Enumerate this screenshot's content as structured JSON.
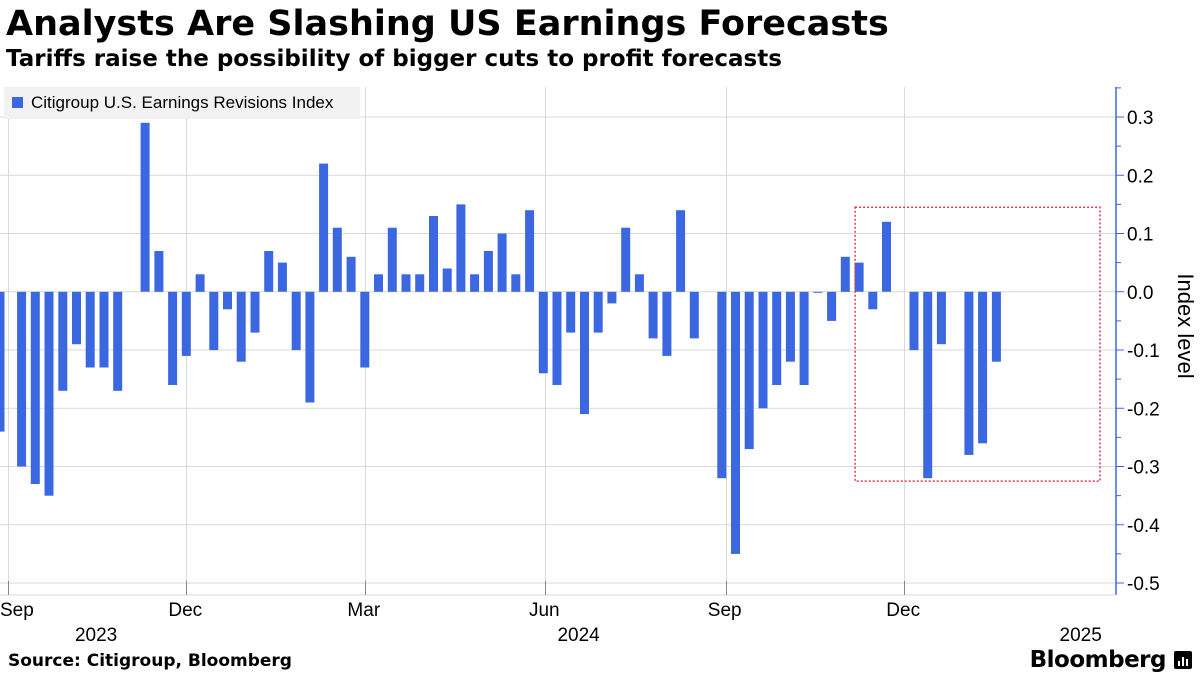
{
  "header": {
    "title": "Analysts Are Slashing US Earnings Forecasts",
    "subtitle": "Tariffs raise the possibility of bigger cuts to profit forecasts"
  },
  "legend": {
    "label": "Citigroup U.S. Earnings Revisions Index"
  },
  "footer": {
    "source": "Source: Citigroup, Bloomberg",
    "brand": "Bloomberg"
  },
  "colors": {
    "bar": "#3b68e0",
    "grid": "#d9d9d9",
    "highlight": "#e8344a",
    "axis": "#3b68e0"
  },
  "chart_data": {
    "type": "bar",
    "title": "Analysts Are Slashing US Earnings Forecasts",
    "ylabel": "Index level",
    "ylim": [
      -0.5,
      0.35
    ],
    "yticks": [
      0.3,
      0.2,
      0.1,
      0.0,
      -0.1,
      -0.2,
      -0.3,
      -0.4,
      -0.5
    ],
    "ytick_labels": [
      "0.3",
      "0.2",
      "0.1",
      "0.0",
      "-0.1",
      "-0.2",
      "-0.3",
      "-0.4",
      "-0.5"
    ],
    "grid": true,
    "legend_position": "top-left",
    "x_axis": {
      "start": "2023-08-28",
      "end": "2025-03-19",
      "months": [
        {
          "label": "Sep",
          "date": "2023-09-01"
        },
        {
          "label": "Dec",
          "date": "2023-12-01"
        },
        {
          "label": "Mar",
          "date": "2024-03-01"
        },
        {
          "label": "Jun",
          "date": "2024-06-01"
        },
        {
          "label": "Sep",
          "date": "2024-09-01"
        },
        {
          "label": "Dec",
          "date": "2024-12-01"
        }
      ],
      "years": [
        {
          "label": "2023",
          "date": "2023-10-16"
        },
        {
          "label": "2024",
          "date": "2024-06-18"
        },
        {
          "label": "2025",
          "date": "2025-03-01"
        }
      ]
    },
    "highlight_range": {
      "x_start": "2024-11-08",
      "x_end": "2025-03-19",
      "y_min": -0.325,
      "y_max": 0.145
    },
    "series": [
      {
        "name": "Citigroup U.S. Earnings Revisions Index",
        "points": [
          {
            "x": "2023-08-28",
            "y": -0.24
          },
          {
            "x": "2023-09-08",
            "y": -0.3
          },
          {
            "x": "2023-09-15",
            "y": -0.33
          },
          {
            "x": "2023-09-22",
            "y": -0.35
          },
          {
            "x": "2023-09-29",
            "y": -0.17
          },
          {
            "x": "2023-10-06",
            "y": -0.09
          },
          {
            "x": "2023-10-13",
            "y": -0.13
          },
          {
            "x": "2023-10-20",
            "y": -0.13
          },
          {
            "x": "2023-10-27",
            "y": -0.17
          },
          {
            "x": "2023-11-10",
            "y": 0.29
          },
          {
            "x": "2023-11-17",
            "y": 0.07
          },
          {
            "x": "2023-11-24",
            "y": -0.16
          },
          {
            "x": "2023-12-01",
            "y": -0.11
          },
          {
            "x": "2023-12-08",
            "y": 0.03
          },
          {
            "x": "2023-12-15",
            "y": -0.1
          },
          {
            "x": "2023-12-22",
            "y": -0.03
          },
          {
            "x": "2023-12-29",
            "y": -0.12
          },
          {
            "x": "2024-01-05",
            "y": -0.07
          },
          {
            "x": "2024-01-12",
            "y": 0.07
          },
          {
            "x": "2024-01-19",
            "y": 0.05
          },
          {
            "x": "2024-01-26",
            "y": -0.1
          },
          {
            "x": "2024-02-02",
            "y": -0.19
          },
          {
            "x": "2024-02-09",
            "y": 0.22
          },
          {
            "x": "2024-02-16",
            "y": 0.11
          },
          {
            "x": "2024-02-23",
            "y": 0.06
          },
          {
            "x": "2024-03-01",
            "y": -0.13
          },
          {
            "x": "2024-03-08",
            "y": 0.03
          },
          {
            "x": "2024-03-15",
            "y": 0.11
          },
          {
            "x": "2024-03-22",
            "y": 0.03
          },
          {
            "x": "2024-03-29",
            "y": 0.03
          },
          {
            "x": "2024-04-05",
            "y": 0.13
          },
          {
            "x": "2024-04-12",
            "y": 0.04
          },
          {
            "x": "2024-04-19",
            "y": 0.15
          },
          {
            "x": "2024-04-26",
            "y": 0.03
          },
          {
            "x": "2024-05-03",
            "y": 0.07
          },
          {
            "x": "2024-05-10",
            "y": 0.1
          },
          {
            "x": "2024-05-17",
            "y": 0.03
          },
          {
            "x": "2024-05-24",
            "y": 0.14
          },
          {
            "x": "2024-05-31",
            "y": -0.14
          },
          {
            "x": "2024-06-07",
            "y": -0.16
          },
          {
            "x": "2024-06-14",
            "y": -0.07
          },
          {
            "x": "2024-06-21",
            "y": -0.21
          },
          {
            "x": "2024-06-28",
            "y": -0.07
          },
          {
            "x": "2024-07-05",
            "y": -0.02
          },
          {
            "x": "2024-07-12",
            "y": 0.11
          },
          {
            "x": "2024-07-19",
            "y": 0.03
          },
          {
            "x": "2024-07-26",
            "y": -0.08
          },
          {
            "x": "2024-08-02",
            "y": -0.11
          },
          {
            "x": "2024-08-09",
            "y": 0.14
          },
          {
            "x": "2024-08-16",
            "y": -0.08
          },
          {
            "x": "2024-08-30",
            "y": -0.32
          },
          {
            "x": "2024-09-06",
            "y": -0.45
          },
          {
            "x": "2024-09-13",
            "y": -0.27
          },
          {
            "x": "2024-09-20",
            "y": -0.2
          },
          {
            "x": "2024-09-27",
            "y": -0.16
          },
          {
            "x": "2024-10-04",
            "y": -0.12
          },
          {
            "x": "2024-10-11",
            "y": -0.16
          },
          {
            "x": "2024-10-18",
            "y": 0.0
          },
          {
            "x": "2024-10-25",
            "y": -0.05
          },
          {
            "x": "2024-11-01",
            "y": 0.06
          },
          {
            "x": "2024-11-08",
            "y": 0.05
          },
          {
            "x": "2024-11-15",
            "y": -0.03
          },
          {
            "x": "2024-11-22",
            "y": 0.12
          },
          {
            "x": "2024-12-06",
            "y": -0.1
          },
          {
            "x": "2024-12-13",
            "y": -0.32
          },
          {
            "x": "2024-12-20",
            "y": -0.09
          },
          {
            "x": "2025-01-03",
            "y": -0.28
          },
          {
            "x": "2025-01-10",
            "y": -0.26
          },
          {
            "x": "2025-01-17",
            "y": -0.12
          }
        ]
      }
    ]
  }
}
